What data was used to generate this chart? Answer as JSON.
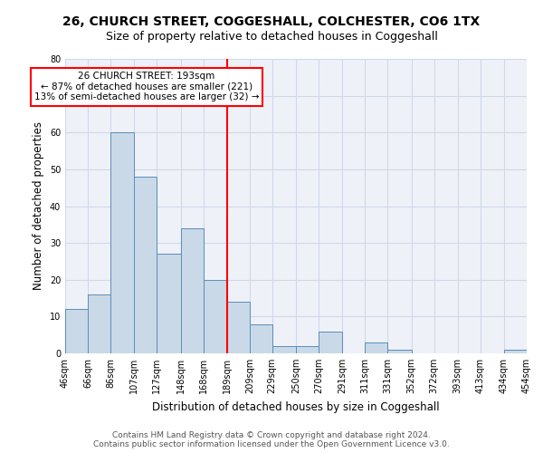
{
  "title": "26, CHURCH STREET, COGGESHALL, COLCHESTER, CO6 1TX",
  "subtitle": "Size of property relative to detached houses in Coggeshall",
  "xlabel": "Distribution of detached houses by size in Coggeshall",
  "ylabel": "Number of detached properties",
  "bar_edges": [
    46,
    66,
    86,
    107,
    127,
    148,
    168,
    189,
    209,
    229,
    250,
    270,
    291,
    311,
    331,
    352,
    372,
    393,
    413,
    434,
    454
  ],
  "bar_heights": [
    12,
    16,
    60,
    48,
    27,
    34,
    20,
    14,
    8,
    2,
    2,
    6,
    0,
    3,
    1,
    0,
    0,
    0,
    0,
    1
  ],
  "bar_color": "#c9d9e8",
  "bar_edge_color": "#5b8db8",
  "red_line_x": 189,
  "annotation_text": "26 CHURCH STREET: 193sqm\n← 87% of detached houses are smaller (221)\n13% of semi-detached houses are larger (32) →",
  "ylim": [
    0,
    80
  ],
  "yticks": [
    0,
    10,
    20,
    30,
    40,
    50,
    60,
    70,
    80
  ],
  "grid_color": "#d0d8e8",
  "background_color": "#eef2f8",
  "footer_line1": "Contains HM Land Registry data © Crown copyright and database right 2024.",
  "footer_line2": "Contains public sector information licensed under the Open Government Licence v3.0.",
  "title_fontsize": 10,
  "subtitle_fontsize": 9,
  "xlabel_fontsize": 8.5,
  "ylabel_fontsize": 8.5,
  "tick_fontsize": 7,
  "annotation_fontsize": 7.5,
  "footer_fontsize": 6.5
}
